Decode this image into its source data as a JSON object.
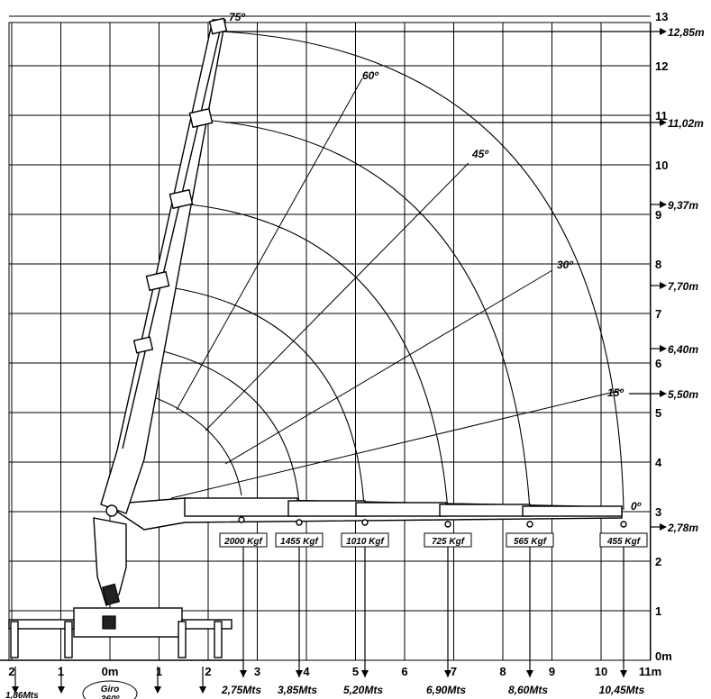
{
  "height_ticks": [
    "0m",
    "1",
    "2",
    "3",
    "4",
    "5",
    "6",
    "7",
    "8",
    "9",
    "10",
    "11",
    "12",
    "13"
  ],
  "reach_ticks_right": [
    "0m",
    "1",
    "2",
    "3",
    "4",
    "5",
    "6",
    "7",
    "8",
    "9",
    "10",
    "11m"
  ],
  "reach_ticks_left": [
    "2",
    "1"
  ],
  "angles": [
    "0º",
    "15º",
    "30º",
    "45º",
    "60º",
    "75º"
  ],
  "height_markers": [
    "12,85m",
    "11,02m",
    "9,37m",
    "7,70m",
    "6,40m",
    "5,50m",
    "2,78m"
  ],
  "loads": [
    "2000 Kgf",
    "1455 Kgf",
    "1010 Kgf",
    "725 Kgf",
    "565 Kgf",
    "455 Kgf"
  ],
  "reach_labels": [
    "2,75Mts",
    "3,85Mts",
    "5,20Mts",
    "6,90Mts",
    "8,60Mts",
    "10,45Mts"
  ],
  "stabilizer_label": "1,86Mts",
  "rotation_label": "Giro",
  "rotation_value": "360º"
}
